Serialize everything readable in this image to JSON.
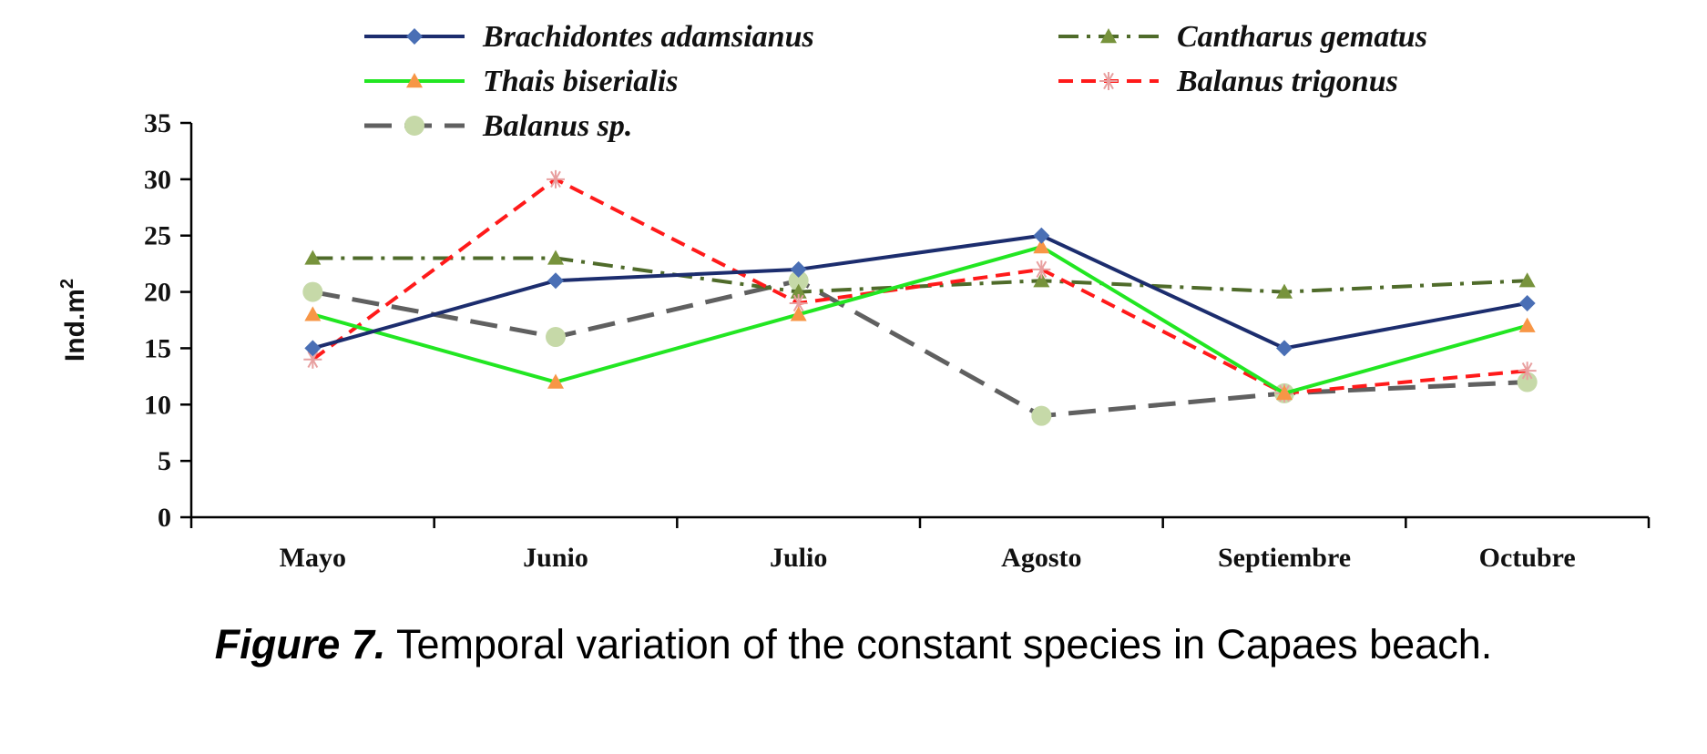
{
  "chart_data": {
    "type": "line",
    "title": "",
    "xlabel": "",
    "ylabel": "Ind.m",
    "ylabel_superscript": "2",
    "categories": [
      "Mayo",
      "Junio",
      "Julio",
      "Agosto",
      "Septiembre",
      "Octubre"
    ],
    "ylim": [
      0,
      35
    ],
    "yticks": [
      0,
      5,
      10,
      15,
      20,
      25,
      30,
      35
    ],
    "grid": false,
    "legend_position": "top",
    "series": [
      {
        "name": "Brachidontes adamsianus",
        "values": [
          15,
          21,
          22,
          25,
          15,
          19
        ],
        "color": "#1c2d6e",
        "marker": "diamond",
        "marker_color": "#4a6fb5",
        "dash": "solid"
      },
      {
        "name": "Cantharus gematus",
        "values": [
          23,
          23,
          20,
          21,
          20,
          21
        ],
        "color": "#4f6b2a",
        "marker": "triangle",
        "marker_color": "#77933c",
        "dash": "dashdot"
      },
      {
        "name": "Thais biserialis",
        "values": [
          18,
          12,
          18,
          24,
          11,
          17
        ],
        "color": "#22e622",
        "marker": "triangle",
        "marker_color": "#f79646",
        "dash": "solid"
      },
      {
        "name": "Balanus trigonus",
        "values": [
          14,
          30,
          19,
          22,
          11,
          13
        ],
        "color": "#ff1a1a",
        "marker": "asterisk",
        "marker_color": "#e8a0a0",
        "dash": "dashed"
      },
      {
        "name": "Balanus sp.",
        "values": [
          20,
          16,
          21,
          9,
          11,
          12
        ],
        "color": "#606060",
        "marker": "circle",
        "marker_color": "#c6d9a8",
        "dash": "longdash"
      }
    ]
  },
  "caption": {
    "label": "Figure 7.",
    "text": " Temporal variation of the constant species in Capaes beach."
  }
}
